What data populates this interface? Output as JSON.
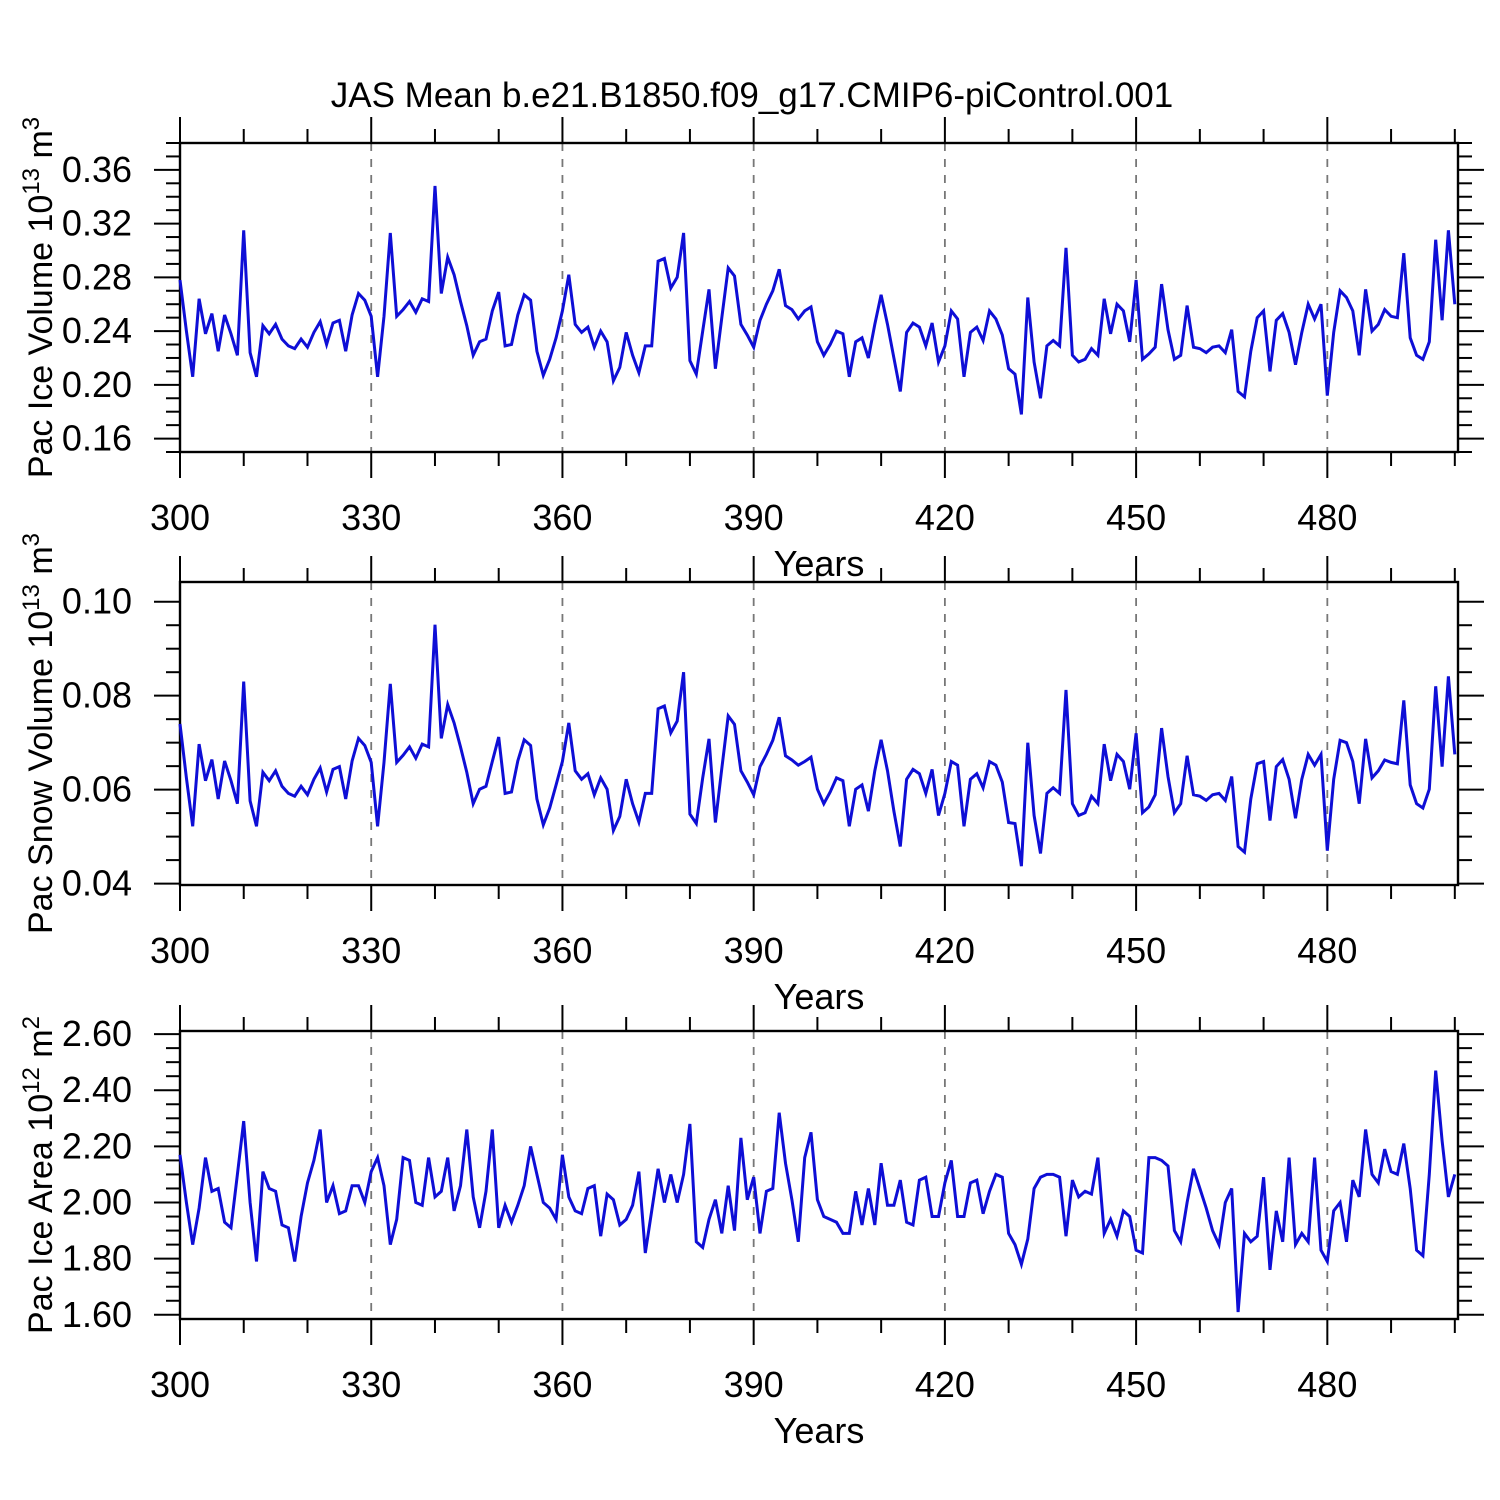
{
  "title": "JAS Mean b.e21.B1850.f09_g17.CMIP6-piControl.001",
  "style": {
    "line_color": "#0e0ed6",
    "frame_color": "#000000",
    "grid_color": "#777777",
    "text_color": "#000000",
    "background": "#ffffff"
  },
  "chart_data": [
    {
      "type": "line",
      "name": "pac-ice-volume",
      "ylabel": {
        "prefix": "Pac Ice Volume 10",
        "exp": "13",
        "unit": "m",
        "unit_exp": "3"
      },
      "xlabel": "Years",
      "x_start": 300,
      "x_step": 1,
      "xlim": [
        300,
        500.5
      ],
      "ylim": [
        0.15,
        0.38
      ],
      "xticks": [
        300,
        330,
        360,
        390,
        420,
        450,
        480
      ],
      "xtick_labels": [
        "300",
        "330",
        "360",
        "390",
        "420",
        "450",
        "480"
      ],
      "x_minor_step": 10,
      "grid_at": [
        330,
        360,
        390,
        420,
        450,
        480
      ],
      "yticks": [
        0.16,
        0.2,
        0.24,
        0.28,
        0.32,
        0.36
      ],
      "ytick_labels": [
        "0.16",
        "0.20",
        "0.24",
        "0.28",
        "0.32",
        "0.36"
      ],
      "y_minor_step": 0.01,
      "values": [
        0.278,
        0.24,
        0.206,
        0.264,
        0.238,
        0.253,
        0.225,
        0.252,
        0.238,
        0.222,
        0.315,
        0.224,
        0.206,
        0.244,
        0.238,
        0.245,
        0.234,
        0.229,
        0.227,
        0.234,
        0.228,
        0.239,
        0.247,
        0.23,
        0.246,
        0.248,
        0.225,
        0.252,
        0.268,
        0.263,
        0.251,
        0.206,
        0.251,
        0.313,
        0.251,
        0.256,
        0.262,
        0.254,
        0.264,
        0.262,
        0.348,
        0.268,
        0.295,
        0.282,
        0.262,
        0.244,
        0.222,
        0.232,
        0.234,
        0.255,
        0.269,
        0.229,
        0.23,
        0.252,
        0.267,
        0.263,
        0.225,
        0.207,
        0.219,
        0.235,
        0.255,
        0.282,
        0.245,
        0.239,
        0.243,
        0.228,
        0.24,
        0.232,
        0.203,
        0.213,
        0.239,
        0.222,
        0.209,
        0.229,
        0.229,
        0.292,
        0.294,
        0.272,
        0.28,
        0.313,
        0.218,
        0.208,
        0.24,
        0.271,
        0.212,
        0.25,
        0.287,
        0.281,
        0.245,
        0.237,
        0.228,
        0.248,
        0.26,
        0.27,
        0.286,
        0.259,
        0.256,
        0.249,
        0.255,
        0.258,
        0.232,
        0.222,
        0.23,
        0.24,
        0.238,
        0.206,
        0.232,
        0.235,
        0.22,
        0.245,
        0.267,
        0.245,
        0.22,
        0.195,
        0.239,
        0.246,
        0.243,
        0.229,
        0.246,
        0.217,
        0.229,
        0.255,
        0.249,
        0.206,
        0.239,
        0.243,
        0.233,
        0.255,
        0.249,
        0.237,
        0.212,
        0.208,
        0.178,
        0.265,
        0.217,
        0.19,
        0.229,
        0.233,
        0.229,
        0.302,
        0.222,
        0.217,
        0.219,
        0.227,
        0.222,
        0.264,
        0.238,
        0.26,
        0.255,
        0.232,
        0.278,
        0.219,
        0.223,
        0.228,
        0.275,
        0.241,
        0.219,
        0.222,
        0.259,
        0.228,
        0.227,
        0.224,
        0.228,
        0.229,
        0.224,
        0.241,
        0.195,
        0.191,
        0.225,
        0.25,
        0.255,
        0.21,
        0.248,
        0.253,
        0.239,
        0.215,
        0.239,
        0.26,
        0.249,
        0.26,
        0.192,
        0.239,
        0.27,
        0.265,
        0.255,
        0.222,
        0.271,
        0.24,
        0.245,
        0.256,
        0.251,
        0.25,
        0.298,
        0.235,
        0.222,
        0.219,
        0.232,
        0.308,
        0.248,
        0.315,
        0.26
      ]
    },
    {
      "type": "line",
      "name": "pac-snow-volume",
      "ylabel": {
        "prefix": "Pac Snow Volume 10",
        "exp": "13",
        "unit": "m",
        "unit_exp": "3"
      },
      "xlabel": "Years",
      "x_start": 300,
      "x_step": 1,
      "xlim": [
        300,
        500.5
      ],
      "ylim": [
        0.0397,
        0.1042
      ],
      "xticks": [
        300,
        330,
        360,
        390,
        420,
        450,
        480
      ],
      "xtick_labels": [
        "300",
        "330",
        "360",
        "390",
        "420",
        "450",
        "480"
      ],
      "x_minor_step": 10,
      "grid_at": [
        330,
        360,
        390,
        420,
        450,
        480
      ],
      "yticks": [
        0.04,
        0.06,
        0.08,
        0.1
      ],
      "ytick_labels": [
        "0.04",
        "0.06",
        "0.08",
        "0.10"
      ],
      "y_minor_step": 0.005,
      "values": [
        0.074,
        0.0625,
        0.0522,
        0.0697,
        0.0619,
        0.0664,
        0.058,
        0.0661,
        0.0619,
        0.057,
        0.083,
        0.0576,
        0.0522,
        0.0637,
        0.0619,
        0.064,
        0.0607,
        0.0592,
        0.0586,
        0.0607,
        0.0589,
        0.0622,
        0.0646,
        0.0595,
        0.0643,
        0.0649,
        0.058,
        0.0661,
        0.0709,
        0.0694,
        0.0658,
        0.0522,
        0.0658,
        0.0825,
        0.0658,
        0.0673,
        0.0691,
        0.0667,
        0.0697,
        0.0691,
        0.0951,
        0.0709,
        0.0781,
        0.0742,
        0.0691,
        0.0637,
        0.057,
        0.0601,
        0.0607,
        0.066,
        0.0712,
        0.0592,
        0.0595,
        0.0661,
        0.0706,
        0.0694,
        0.058,
        0.0525,
        0.0561,
        0.061,
        0.066,
        0.0742,
        0.064,
        0.0622,
        0.0634,
        0.0589,
        0.0625,
        0.0601,
        0.0513,
        0.0543,
        0.0622,
        0.057,
        0.0531,
        0.0592,
        0.0592,
        0.0772,
        0.0778,
        0.0721,
        0.0746,
        0.085,
        0.0548,
        0.0528,
        0.0625,
        0.0708,
        0.053,
        0.0645,
        0.0757,
        0.0739,
        0.064,
        0.0616,
        0.0589,
        0.0649,
        0.0675,
        0.0705,
        0.0754,
        0.0672,
        0.0663,
        0.0652,
        0.066,
        0.0669,
        0.0601,
        0.057,
        0.0595,
        0.0625,
        0.0619,
        0.0522,
        0.0601,
        0.061,
        0.0554,
        0.064,
        0.0706,
        0.064,
        0.0554,
        0.0479,
        0.0622,
        0.0643,
        0.0634,
        0.0592,
        0.0643,
        0.0545,
        0.0592,
        0.066,
        0.0652,
        0.0522,
        0.0622,
        0.0634,
        0.0604,
        0.066,
        0.0652,
        0.0616,
        0.053,
        0.0528,
        0.0437,
        0.07,
        0.0545,
        0.0464,
        0.0592,
        0.0604,
        0.0592,
        0.0812,
        0.057,
        0.0545,
        0.0551,
        0.0586,
        0.057,
        0.0697,
        0.0619,
        0.0675,
        0.066,
        0.0601,
        0.072,
        0.0551,
        0.0563,
        0.0589,
        0.0731,
        0.0628,
        0.0551,
        0.057,
        0.0672,
        0.0589,
        0.0586,
        0.0577,
        0.0589,
        0.0592,
        0.0577,
        0.0628,
        0.0479,
        0.0467,
        0.058,
        0.0655,
        0.066,
        0.0534,
        0.0649,
        0.0664,
        0.0622,
        0.0539,
        0.0622,
        0.0675,
        0.0652,
        0.0675,
        0.047,
        0.0622,
        0.0705,
        0.07,
        0.066,
        0.057,
        0.0708,
        0.0625,
        0.064,
        0.0663,
        0.0658,
        0.0655,
        0.079,
        0.061,
        0.057,
        0.0561,
        0.0601,
        0.082,
        0.0649,
        0.0841,
        0.0675
      ]
    },
    {
      "type": "line",
      "name": "pac-ice-area",
      "ylabel": {
        "prefix": "Pac Ice Area 10",
        "exp": "12",
        "unit": "m",
        "unit_exp": "2"
      },
      "xlabel": "Years",
      "x_start": 300,
      "x_step": 1,
      "xlim": [
        300,
        500.5
      ],
      "ylim": [
        1.585,
        2.611
      ],
      "xticks": [
        300,
        330,
        360,
        390,
        420,
        450,
        480
      ],
      "xtick_labels": [
        "300",
        "330",
        "360",
        "390",
        "420",
        "450",
        "480"
      ],
      "x_minor_step": 10,
      "grid_at": [
        330,
        360,
        390,
        420,
        450,
        480
      ],
      "yticks": [
        1.6,
        1.8,
        2.0,
        2.2,
        2.4,
        2.6
      ],
      "ytick_labels": [
        "1.60",
        "1.80",
        "2.00",
        "2.20",
        "2.40",
        "2.60"
      ],
      "y_minor_step": 0.05,
      "values": [
        2.17,
        2.0,
        1.85,
        1.98,
        2.16,
        2.04,
        2.05,
        1.93,
        1.91,
        2.1,
        2.29,
        2.0,
        1.79,
        2.11,
        2.05,
        2.04,
        1.92,
        1.91,
        1.79,
        1.95,
        2.07,
        2.15,
        2.26,
        2.0,
        2.06,
        1.96,
        1.97,
        2.06,
        2.06,
        2.0,
        2.11,
        2.16,
        2.06,
        1.85,
        1.94,
        2.16,
        2.15,
        2.0,
        1.99,
        2.16,
        2.02,
        2.04,
        2.16,
        1.97,
        2.06,
        2.26,
        2.02,
        1.91,
        2.04,
        2.26,
        1.91,
        1.99,
        1.93,
        1.99,
        2.06,
        2.2,
        2.1,
        2.0,
        1.98,
        1.94,
        2.17,
        2.02,
        1.97,
        1.96,
        2.05,
        2.06,
        1.88,
        2.03,
        2.01,
        1.92,
        1.94,
        1.99,
        2.11,
        1.82,
        1.97,
        2.12,
        2.0,
        2.1,
        2.0,
        2.1,
        2.28,
        1.86,
        1.84,
        1.94,
        2.01,
        1.89,
        2.06,
        1.9,
        2.23,
        2.01,
        2.09,
        1.89,
        2.04,
        2.05,
        2.32,
        2.14,
        2.01,
        1.86,
        2.16,
        2.25,
        2.01,
        1.95,
        1.94,
        1.93,
        1.89,
        1.89,
        2.04,
        1.92,
        2.05,
        1.92,
        2.14,
        1.99,
        1.99,
        2.08,
        1.93,
        1.92,
        2.08,
        2.09,
        1.95,
        1.95,
        2.07,
        2.15,
        1.95,
        1.95,
        2.07,
        2.08,
        1.96,
        2.04,
        2.1,
        2.09,
        1.89,
        1.85,
        1.78,
        1.87,
        2.05,
        2.09,
        2.1,
        2.1,
        2.09,
        1.88,
        2.08,
        2.02,
        2.04,
        2.03,
        2.16,
        1.89,
        1.94,
        1.88,
        1.97,
        1.95,
        1.83,
        1.82,
        2.16,
        2.16,
        2.15,
        2.13,
        1.9,
        1.86,
        2.0,
        2.12,
        2.05,
        1.98,
        1.9,
        1.85,
        2.0,
        2.05,
        1.61,
        1.89,
        1.86,
        1.88,
        2.09,
        1.76,
        1.97,
        1.86,
        2.16,
        1.85,
        1.89,
        1.86,
        2.16,
        1.83,
        1.79,
        1.97,
        2.0,
        1.86,
        2.08,
        2.02,
        2.26,
        2.1,
        2.07,
        2.19,
        2.11,
        2.1,
        2.21,
        2.05,
        1.83,
        1.81,
        2.1,
        2.47,
        2.22,
        2.02,
        2.1
      ]
    }
  ]
}
